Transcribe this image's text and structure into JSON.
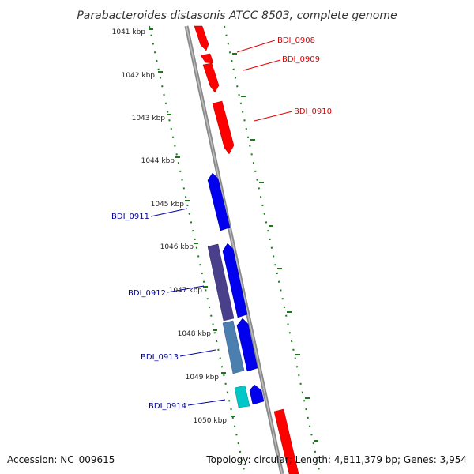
{
  "title": "Parabacteroides distasonis ATCC 8503, complete genome",
  "footer": {
    "accession": "Accession: NC_009615",
    "summary": "Topology: circular; Length: 4,811,379 bp; Genes: 3,954"
  },
  "kbp_labels": [
    "1041 kbp",
    "1042 kbp",
    "1043 kbp",
    "1044 kbp",
    "1045 kbp",
    "1046 kbp",
    "1047 kbp",
    "1048 kbp",
    "1049 kbp",
    "1050 kbp"
  ],
  "genes": {
    "forward": [
      "BDI_0908",
      "BDI_0909",
      "BDI_0910"
    ],
    "reverse": [
      "BDI_0911",
      "BDI_0912",
      "BDI_0913",
      "BDI_0914"
    ]
  },
  "colors": {
    "forward_strand": "#ff0000",
    "reverse_strand": "#0000ee",
    "backbone": "#8a8a8a",
    "tick": "#1a7a1a",
    "gene_purple": "#4a3f8a",
    "gene_steel": "#4a7fb0",
    "gene_cyan": "#00c8c8"
  }
}
